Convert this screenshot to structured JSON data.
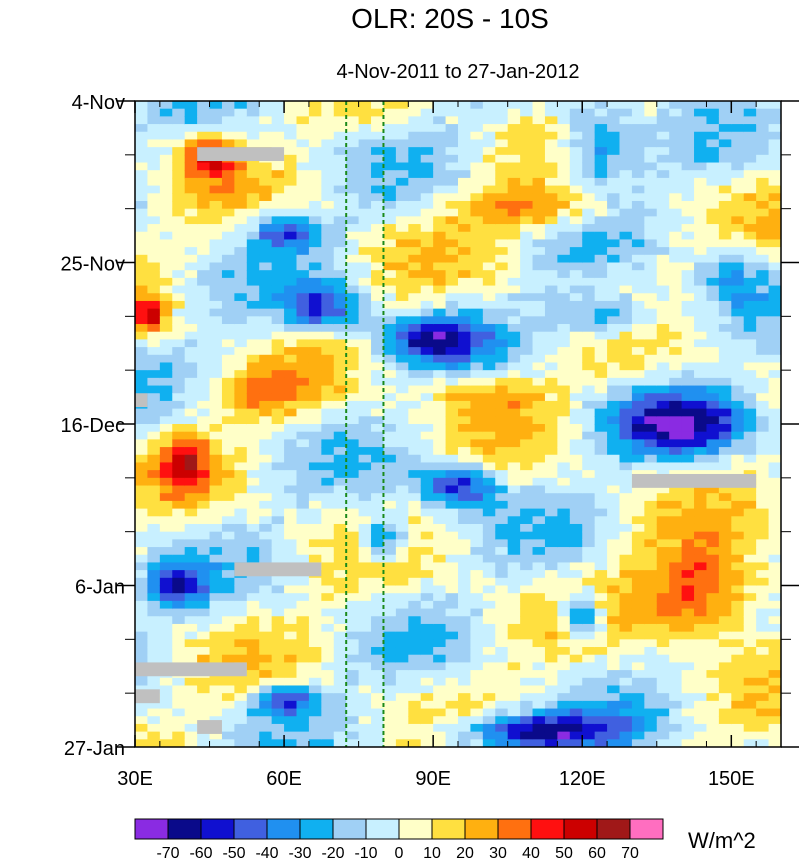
{
  "chart_data": {
    "type": "heatmap",
    "title": "OLR: 20S - 10S",
    "subtitle": "4-Nov-2011 to 27-Jan-2012",
    "x_axis": {
      "range": [
        30,
        160
      ],
      "ticks": [
        30,
        60,
        90,
        120,
        150
      ],
      "tick_labels": [
        "30E",
        "60E",
        "90E",
        "120E",
        "150E"
      ]
    },
    "y_axis": {
      "range_days": [
        0,
        84
      ],
      "direction": "down",
      "ticks": [
        0,
        21,
        42,
        63,
        84
      ],
      "tick_labels": [
        "4-Nov",
        "25-Nov",
        "16-Dec",
        "6-Jan",
        "27-Jan"
      ]
    },
    "reference_lines_lon": [
      72.5,
      80
    ],
    "colorbar": {
      "levels": [
        "-70",
        "-60",
        "-50",
        "-40",
        "-30",
        "-20",
        "-10",
        "0",
        "10",
        "20",
        "30",
        "40",
        "50",
        "60",
        "70"
      ],
      "colors": [
        "#8a2be2",
        "#0a0a8a",
        "#1010d0",
        "#4060e0",
        "#2090f0",
        "#10b0f0",
        "#a0d0f5",
        "#c8f0ff",
        "#ffffc8",
        "#ffe040",
        "#ffb010",
        "#ff7010",
        "#ff1010",
        "#cc0000",
        "#a01818",
        "#ff6ec0"
      ],
      "units": "W/m^2"
    },
    "anomaly_cells_note": "OLR anomaly field sampled on a coarse lon/day grid",
    "features": [
      {
        "lon": 45,
        "day": 7,
        "value": 45,
        "w": 12,
        "h": 6
      },
      {
        "lon": 33,
        "day": 28,
        "value": 55,
        "w": 6,
        "h": 4
      },
      {
        "lon": 60,
        "day": 17,
        "value": -45,
        "w": 14,
        "h": 5
      },
      {
        "lon": 68,
        "day": 27,
        "value": -50,
        "w": 16,
        "h": 6
      },
      {
        "lon": 90,
        "day": 31,
        "value": -55,
        "w": 20,
        "h": 6
      },
      {
        "lon": 123,
        "day": 6,
        "value": -45,
        "w": 16,
        "h": 10
      },
      {
        "lon": 125,
        "day": 28,
        "value": -40,
        "w": 22,
        "h": 6
      },
      {
        "lon": 140,
        "day": 42,
        "value": -55,
        "w": 30,
        "h": 8
      },
      {
        "lon": 95,
        "day": 50,
        "value": -60,
        "w": 16,
        "h": 6
      },
      {
        "lon": 80,
        "day": 57,
        "value": -50,
        "w": 10,
        "h": 6
      },
      {
        "lon": 145,
        "day": 64,
        "value": 55,
        "w": 26,
        "h": 12
      },
      {
        "lon": 120,
        "day": 67,
        "value": -55,
        "w": 8,
        "h": 6
      },
      {
        "lon": 110,
        "day": 82,
        "value": -65,
        "w": 36,
        "h": 5
      },
      {
        "lon": 40,
        "day": 47,
        "value": 40,
        "w": 10,
        "h": 8
      },
      {
        "lon": 38,
        "day": 63,
        "value": -45,
        "w": 12,
        "h": 6
      },
      {
        "lon": 60,
        "day": 78,
        "value": -50,
        "w": 14,
        "h": 4
      },
      {
        "lon": 110,
        "day": 14,
        "value": 30,
        "w": 30,
        "h": 6
      },
      {
        "lon": 100,
        "day": 38,
        "value": 25,
        "w": 24,
        "h": 6
      },
      {
        "lon": 150,
        "day": 23,
        "value": -30,
        "w": 14,
        "h": 10
      },
      {
        "lon": 55,
        "day": 38,
        "value": 25,
        "w": 20,
        "h": 6
      }
    ],
    "missing_bars": [
      {
        "lon0": 42.5,
        "lon1": 60,
        "day0": 6,
        "day1": 7.8
      },
      {
        "lon0": 30,
        "lon1": 32.5,
        "day0": 38,
        "day1": 39.8
      },
      {
        "lon0": 130,
        "lon1": 155,
        "day0": 48.5,
        "day1": 50.3
      },
      {
        "lon0": 50,
        "lon1": 67.5,
        "day0": 60,
        "day1": 61.8
      },
      {
        "lon0": 30,
        "lon1": 52.5,
        "day0": 73,
        "day1": 74.8
      },
      {
        "lon0": 30,
        "lon1": 35,
        "day0": 76.5,
        "day1": 78.3
      },
      {
        "lon0": 42.5,
        "lon1": 47.5,
        "day0": 80.5,
        "day1": 82.3
      }
    ]
  }
}
